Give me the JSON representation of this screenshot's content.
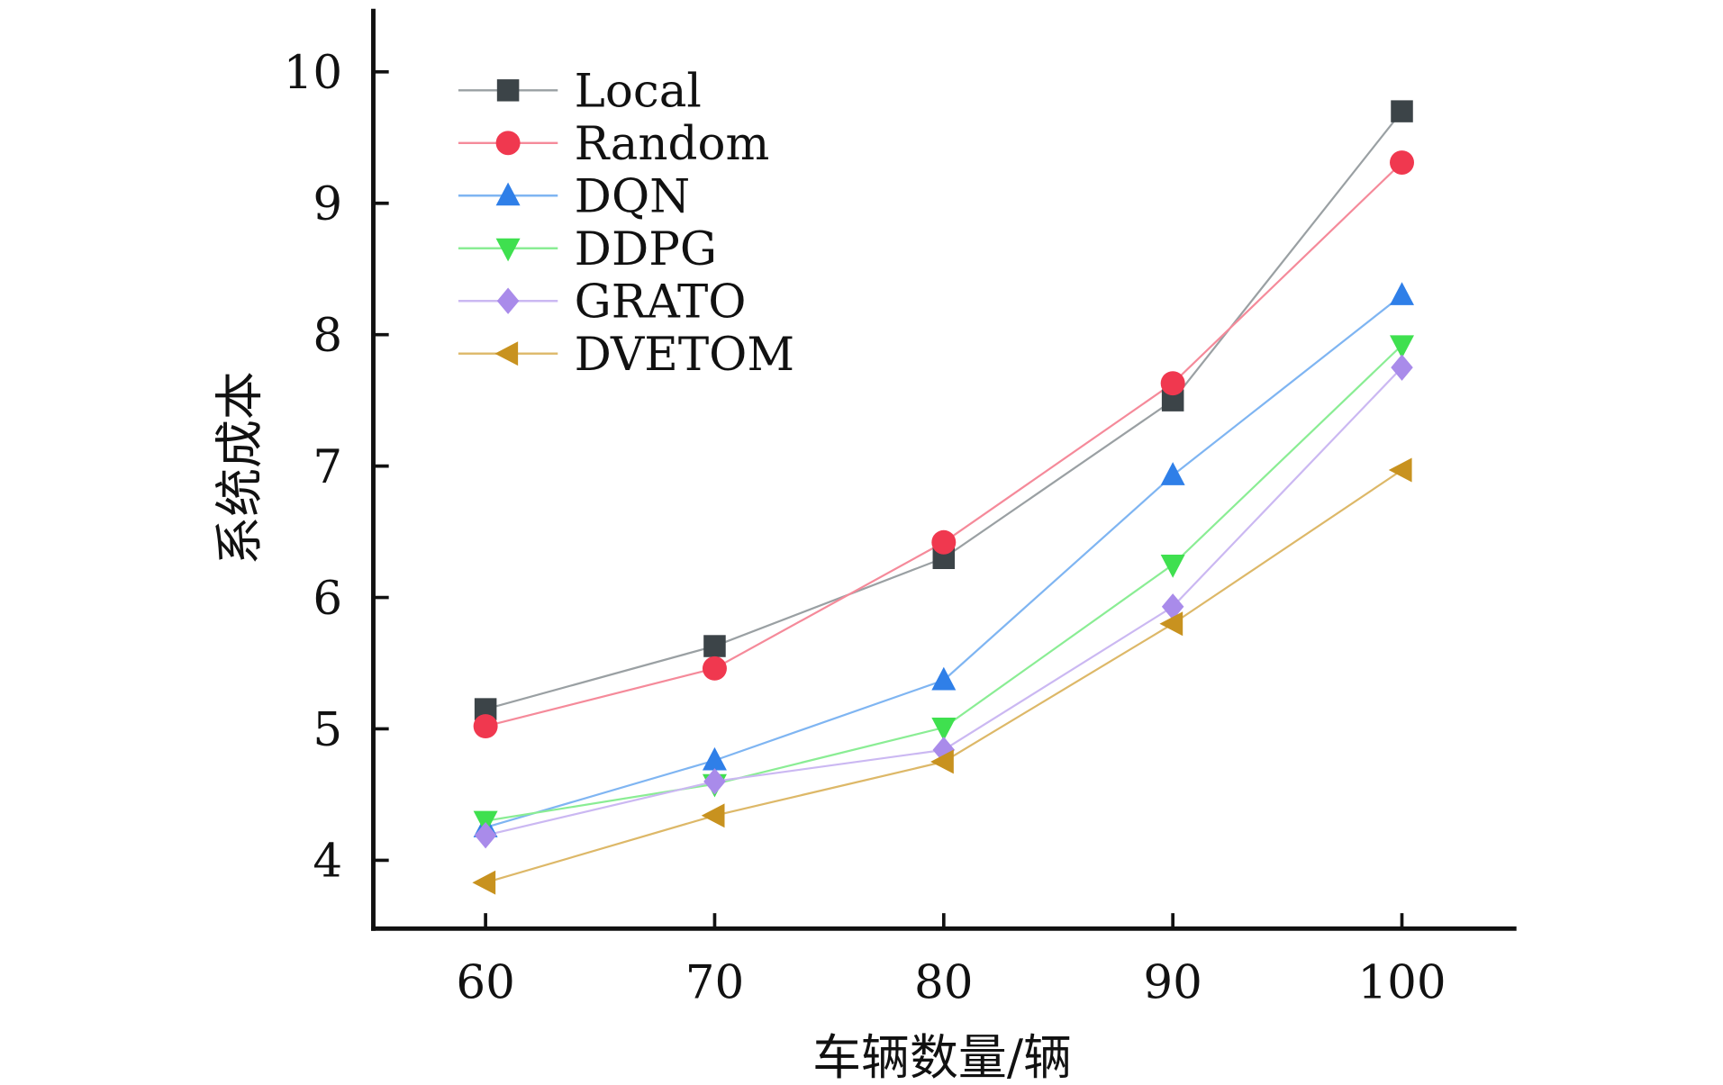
{
  "chart_data": {
    "type": "line",
    "title": "",
    "xlabel": "车辆数量/辆",
    "ylabel": "系统成本",
    "x": [
      60,
      70,
      80,
      90,
      100
    ],
    "xticks": [
      "60",
      "70",
      "80",
      "90",
      "100"
    ],
    "yticks": [
      "4",
      "5",
      "6",
      "7",
      "8",
      "9",
      "10"
    ],
    "xlim": [
      55.1,
      105.0
    ],
    "ylim": [
      3.48,
      10.48
    ],
    "grid": false,
    "legend_position": "top-left",
    "series": [
      {
        "name": "Local",
        "marker": "square",
        "color": "#3c4448",
        "line_color": "#9aa0a3",
        "values": [
          5.15,
          5.63,
          6.3,
          7.5,
          9.7
        ]
      },
      {
        "name": "Random",
        "marker": "circle",
        "color": "#f0384f",
        "line_color": "#f58a9a",
        "values": [
          5.02,
          5.46,
          6.42,
          7.63,
          9.31
        ]
      },
      {
        "name": "DQN",
        "marker": "triangle-up",
        "color": "#2f7fe8",
        "line_color": "#7fb5f2",
        "values": [
          4.25,
          4.76,
          5.37,
          6.93,
          8.3
        ]
      },
      {
        "name": "DDPG",
        "marker": "triangle-down",
        "color": "#3fe04f",
        "line_color": "#8aed94",
        "values": [
          4.3,
          4.58,
          5.01,
          6.25,
          7.92
        ]
      },
      {
        "name": "GRATO",
        "marker": "diamond",
        "color": "#a98bea",
        "line_color": "#cbb8f2",
        "values": [
          4.19,
          4.6,
          4.84,
          5.93,
          7.75
        ]
      },
      {
        "name": "DVETOM",
        "marker": "triangle-left",
        "color": "#c8921f",
        "line_color": "#ddb868",
        "values": [
          3.83,
          4.34,
          4.75,
          5.8,
          6.97
        ]
      }
    ]
  }
}
